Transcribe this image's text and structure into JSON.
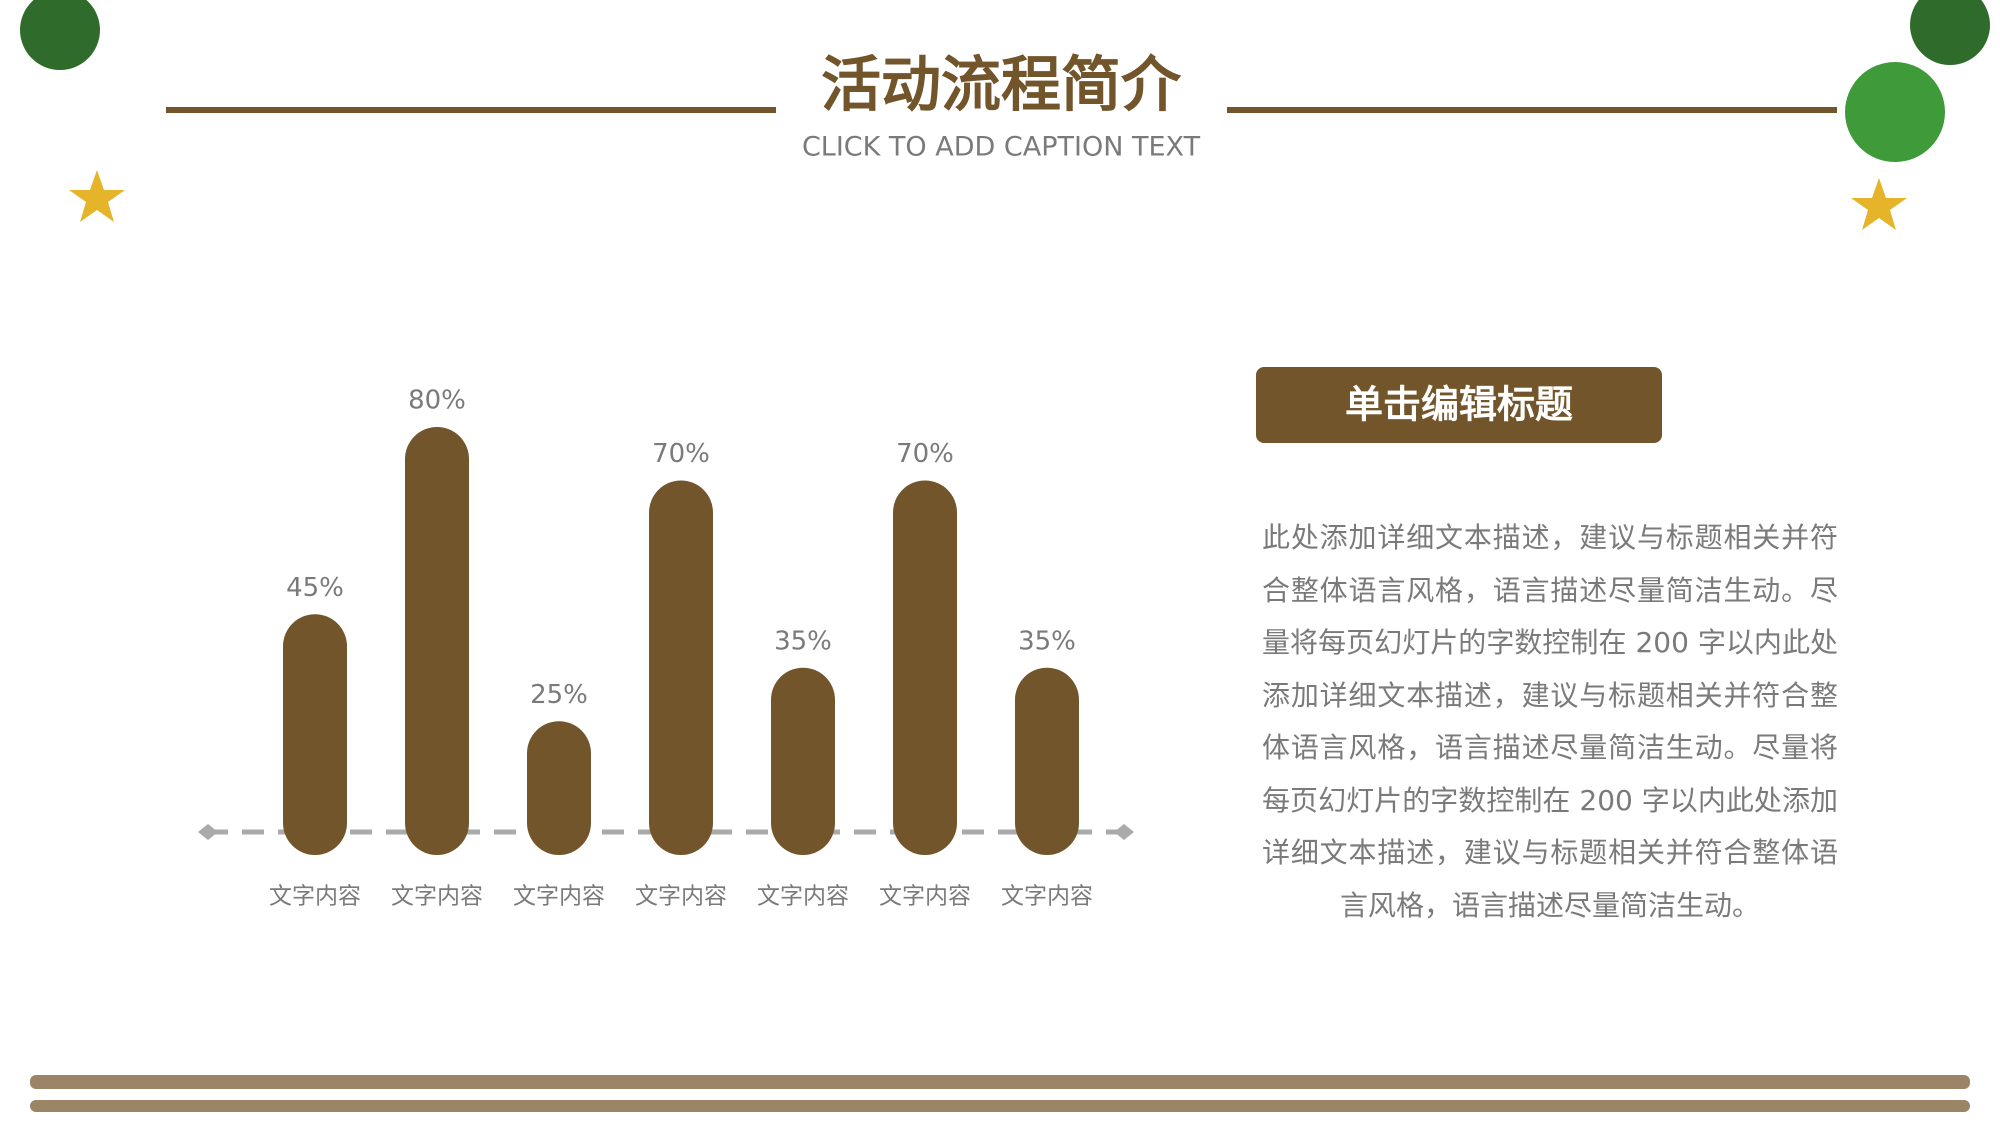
{
  "header": {
    "title": "活动流程简介",
    "caption": "CLICK TO ADD CAPTION TEXT"
  },
  "chart_data": {
    "type": "bar",
    "color": "#72552a",
    "categories": [
      "文字内容",
      "文字内容",
      "文字内容",
      "文字内容",
      "文字内容",
      "文字内容",
      "文字内容"
    ],
    "values": [
      45,
      80,
      25,
      70,
      35,
      70,
      35
    ],
    "value_labels": [
      "45%",
      "80%",
      "25%",
      "70%",
      "35%",
      "70%",
      "35%"
    ]
  },
  "panel": {
    "title": "单击编辑标题",
    "body": "此处添加详细文本描述，建议与标题相关并符合整体语言风格，语言描述尽量简洁生动。尽量将每页幻灯片的字数控制在 200 字以内此处添加详细文本描述，建议与标题相关并符合整体语言风格，语言描述尽量简洁生动。尽量将每页幻灯片的字数控制在 200 字以内此处添加详细文本描述，建议与标题相关并符合整体语言风格，语言描述尽量简洁生动。"
  }
}
